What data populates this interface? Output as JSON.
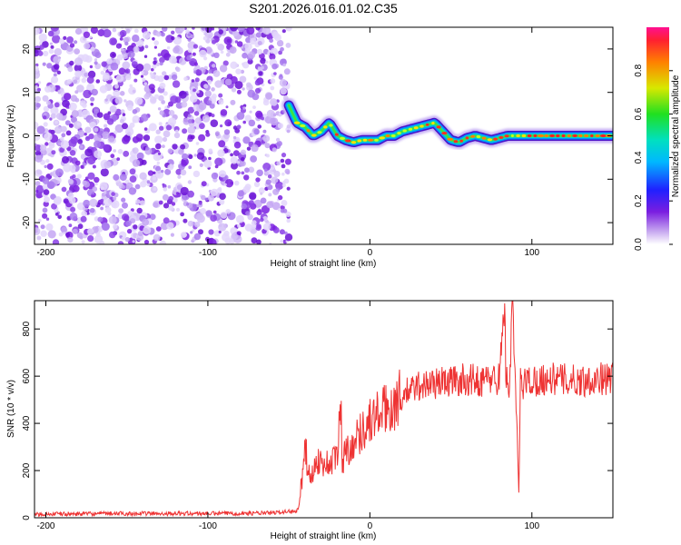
{
  "title": "S201.2026.016.01.02.C35",
  "chart_data": [
    {
      "type": "heatmap",
      "name": "spectrogram",
      "xlabel": "Height of straight line (km)",
      "ylabel": "Frequency (Hz)",
      "xlim": [
        -207,
        150
      ],
      "ylim": [
        -25,
        25
      ],
      "xticks": [
        -200,
        -100,
        0,
        100
      ],
      "yticks": [
        -20,
        -10,
        0,
        10,
        20
      ],
      "colorbar": {
        "label": "Normalized spectral amplitude",
        "range": [
          0,
          1
        ],
        "ticks": [
          "0.0",
          "0.2",
          "0.4",
          "0.6",
          "0.8"
        ],
        "tick_values": [
          0,
          0.2,
          0.4,
          0.6,
          0.8
        ]
      },
      "noise_region": {
        "x_from": -207,
        "x_to": -50
      },
      "ridge": {
        "x": [
          -50,
          -45,
          -40,
          -35,
          -30,
          -25,
          -20,
          -15,
          -10,
          -5,
          0,
          5,
          10,
          15,
          20,
          25,
          30,
          35,
          40,
          45,
          50,
          55,
          60,
          65,
          70,
          75,
          80,
          85,
          90,
          95,
          100,
          110,
          120,
          130,
          140,
          150
        ],
        "freq_hz": [
          7,
          3,
          2,
          0,
          1,
          3,
          0,
          -1,
          -1.5,
          -1,
          -1,
          -1,
          0,
          0,
          1,
          1.5,
          2,
          2.5,
          3,
          1,
          -1,
          -1.5,
          -0.5,
          0,
          -0.5,
          -1,
          -0.5,
          0,
          0,
          0,
          0,
          0,
          0,
          0,
          0,
          0
        ]
      }
    },
    {
      "type": "line",
      "name": "snr",
      "xlabel": "Height of straight line (km)",
      "ylabel": "SNR (10 * v/v)",
      "xlim": [
        -207,
        150
      ],
      "ylim": [
        0,
        920
      ],
      "xticks": [
        -200,
        -100,
        0,
        100
      ],
      "yticks": [
        0,
        200,
        400,
        600,
        800
      ],
      "series": [
        {
          "name": "SNR",
          "color": "#ee3333",
          "x": [
            -207,
            -150,
            -100,
            -60,
            -45,
            -42,
            -40,
            -38,
            -35,
            -32,
            -30,
            -25,
            -20,
            -18,
            -17,
            -15,
            -10,
            -5,
            0,
            5,
            10,
            15,
            20,
            25,
            30,
            40,
            50,
            60,
            70,
            75,
            80,
            83,
            84,
            86,
            88,
            90,
            92,
            93,
            94,
            95,
            100,
            110,
            120,
            130,
            140,
            150
          ],
          "y": [
            15,
            18,
            18,
            20,
            30,
            150,
            330,
            170,
            200,
            250,
            230,
            230,
            260,
            500,
            240,
            280,
            320,
            370,
            410,
            440,
            460,
            480,
            520,
            540,
            560,
            570,
            580,
            585,
            580,
            590,
            590,
            920,
            600,
            550,
            880,
            540,
            100,
            600,
            540,
            580,
            580,
            590,
            585,
            580,
            590,
            590
          ]
        }
      ]
    }
  ]
}
